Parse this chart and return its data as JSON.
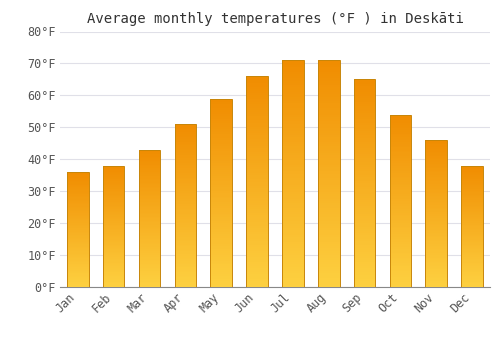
{
  "title": "Average monthly temperatures (°F ) in Deskāti",
  "months": [
    "Jan",
    "Feb",
    "Mar",
    "Apr",
    "May",
    "Jun",
    "Jul",
    "Aug",
    "Sep",
    "Oct",
    "Nov",
    "Dec"
  ],
  "values": [
    36,
    38,
    43,
    51,
    59,
    66,
    71,
    71,
    65,
    54,
    46,
    38
  ],
  "bar_color_top": "#F5A623",
  "bar_color_bottom": "#FFD966",
  "bar_edge_color": "#C8860A",
  "ylim": [
    0,
    80
  ],
  "yticks": [
    0,
    10,
    20,
    30,
    40,
    50,
    60,
    70,
    80
  ],
  "ytick_labels": [
    "0°F",
    "10°F",
    "20°F",
    "30°F",
    "40°F",
    "50°F",
    "60°F",
    "70°F",
    "80°F"
  ],
  "background_color": "#FFFFFF",
  "grid_color": "#E0E0E8",
  "title_fontsize": 10,
  "tick_fontsize": 8.5
}
